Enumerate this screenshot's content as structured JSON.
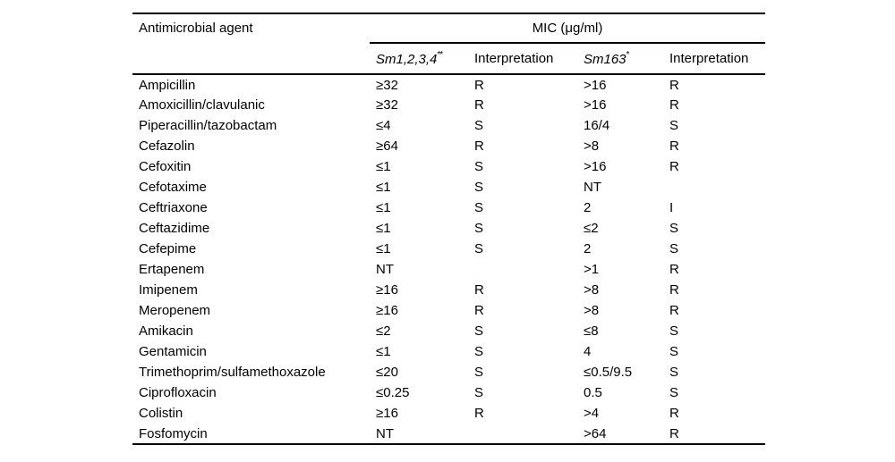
{
  "colors": {
    "background": "#ffffff",
    "text": "#000000",
    "rule": "#000000"
  },
  "table": {
    "columns": {
      "agent": "Antimicrobial agent",
      "mic_group": "MIC (μg/ml)",
      "sub": [
        {
          "label": "Sm1,2,3,4",
          "sup": "**"
        },
        {
          "label": "Interpretation",
          "sup": ""
        },
        {
          "label": "Sm163",
          "sup": "*"
        },
        {
          "label": "Interpretation",
          "sup": ""
        }
      ]
    },
    "rows": [
      {
        "agent": "Ampicillin",
        "sm1234": "≥32",
        "sm1234_interp": "R",
        "sm163": ">16",
        "sm163_interp": "R"
      },
      {
        "agent": "Amoxicillin/clavulanic",
        "sm1234": "≥32",
        "sm1234_interp": "R",
        "sm163": ">16",
        "sm163_interp": "R"
      },
      {
        "agent": "Piperacillin/tazobactam",
        "sm1234": "≤4",
        "sm1234_interp": "S",
        "sm163": "16/4",
        "sm163_interp": "S"
      },
      {
        "agent": "Cefazolin",
        "sm1234": "≥64",
        "sm1234_interp": "R",
        "sm163": ">8",
        "sm163_interp": "R"
      },
      {
        "agent": "Cefoxitin",
        "sm1234": "≤1",
        "sm1234_interp": "S",
        "sm163": ">16",
        "sm163_interp": "R"
      },
      {
        "agent": "Cefotaxime",
        "sm1234": "≤1",
        "sm1234_interp": "S",
        "sm163": "NT",
        "sm163_interp": ""
      },
      {
        "agent": "Ceftriaxone",
        "sm1234": "≤1",
        "sm1234_interp": "S",
        "sm163": "2",
        "sm163_interp": "I"
      },
      {
        "agent": "Ceftazidime",
        "sm1234": "≤1",
        "sm1234_interp": "S",
        "sm163": "≤2",
        "sm163_interp": "S"
      },
      {
        "agent": "Cefepime",
        "sm1234": "≤1",
        "sm1234_interp": "S",
        "sm163": "2",
        "sm163_interp": "S"
      },
      {
        "agent": "Ertapenem",
        "sm1234": "NT",
        "sm1234_interp": "",
        "sm163": ">1",
        "sm163_interp": "R"
      },
      {
        "agent": "Imipenem",
        "sm1234": "≥16",
        "sm1234_interp": "R",
        "sm163": ">8",
        "sm163_interp": "R"
      },
      {
        "agent": "Meropenem",
        "sm1234": "≥16",
        "sm1234_interp": "R",
        "sm163": ">8",
        "sm163_interp": "R"
      },
      {
        "agent": "Amikacin",
        "sm1234": "≤2",
        "sm1234_interp": "S",
        "sm163": "≤8",
        "sm163_interp": "S"
      },
      {
        "agent": "Gentamicin",
        "sm1234": "≤1",
        "sm1234_interp": "S",
        "sm163": "4",
        "sm163_interp": "S"
      },
      {
        "agent": "Trimethoprim/sulfamethoxazole",
        "sm1234": "≤20",
        "sm1234_interp": "S",
        "sm163": "≤0.5/9.5",
        "sm163_interp": "S"
      },
      {
        "agent": "Ciprofloxacin",
        "sm1234": "≤0.25",
        "sm1234_interp": "S",
        "sm163": "0.5",
        "sm163_interp": "S"
      },
      {
        "agent": "Colistin",
        "sm1234": "≥16",
        "sm1234_interp": "R",
        "sm163": ">4",
        "sm163_interp": "R"
      },
      {
        "agent": "Fosfomycin",
        "sm1234": "NT",
        "sm1234_interp": "",
        "sm163": ">64",
        "sm163_interp": "R"
      }
    ]
  }
}
